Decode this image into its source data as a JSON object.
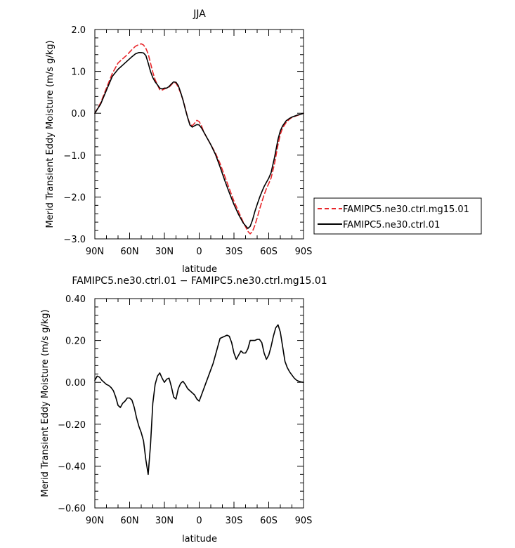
{
  "chart_data": [
    {
      "type": "line",
      "title": "JJA",
      "xlabel": "latitude",
      "ylabel": "Merid Transient Eddy Moisture (m/s g/kg)",
      "xlim": [
        90,
        -90
      ],
      "ylim": [
        -3.0,
        2.0
      ],
      "xticks": [
        90,
        60,
        30,
        0,
        -30,
        -60,
        -90
      ],
      "xtick_labels": [
        "90N",
        "60N",
        "30N",
        "0",
        "30S",
        "60S",
        "90S"
      ],
      "yticks": [
        2.0,
        1.0,
        0.0,
        -1.0,
        -2.0,
        -3.0
      ],
      "ytick_labels": [
        "2.0",
        "1.0",
        "0.0",
        "−1.0",
        "−2.0",
        "−3.0"
      ],
      "legend": "outside-right",
      "series": [
        {
          "name": "FAMIPC5.ne30.ctrl.mg15.01",
          "color": "#e8262a",
          "dash": "dashed",
          "x": [
            90,
            85,
            80,
            75,
            70,
            66,
            62,
            58,
            55,
            52,
            50,
            48,
            46,
            44,
            42,
            40,
            38,
            36,
            34,
            32,
            30,
            28,
            26,
            24,
            22,
            20,
            18,
            16,
            14,
            12,
            10,
            8,
            6,
            4,
            2,
            0,
            -2,
            -4,
            -6,
            -8,
            -10,
            -14,
            -18,
            -22,
            -26,
            -30,
            -34,
            -38,
            -42,
            -44,
            -46,
            -48,
            -50,
            -52,
            -54,
            -56,
            -58,
            -60,
            -62,
            -65,
            -68,
            -70,
            -72,
            -75,
            -78,
            -80,
            -84,
            -88,
            -90
          ],
          "y": [
            0.0,
            0.25,
            0.6,
            0.95,
            1.2,
            1.3,
            1.4,
            1.52,
            1.6,
            1.64,
            1.66,
            1.63,
            1.55,
            1.42,
            1.2,
            0.98,
            0.8,
            0.68,
            0.56,
            0.55,
            0.58,
            0.6,
            0.62,
            0.68,
            0.74,
            0.72,
            0.62,
            0.48,
            0.32,
            0.12,
            -0.1,
            -0.25,
            -0.3,
            -0.24,
            -0.17,
            -0.2,
            -0.3,
            -0.45,
            -0.55,
            -0.65,
            -0.75,
            -0.95,
            -1.2,
            -1.5,
            -1.8,
            -2.1,
            -2.35,
            -2.6,
            -2.82,
            -2.88,
            -2.82,
            -2.68,
            -2.5,
            -2.3,
            -2.12,
            -1.95,
            -1.8,
            -1.68,
            -1.55,
            -1.2,
            -0.75,
            -0.5,
            -0.35,
            -0.22,
            -0.14,
            -0.1,
            -0.06,
            -0.02,
            0.0
          ]
        },
        {
          "name": "FAMIPC5.ne30.ctrl.01",
          "color": "#000000",
          "dash": "solid",
          "x": [
            90,
            85,
            80,
            75,
            70,
            66,
            62,
            58,
            55,
            52,
            50,
            48,
            46,
            44,
            42,
            40,
            38,
            36,
            34,
            32,
            30,
            28,
            26,
            24,
            22,
            20,
            18,
            16,
            14,
            12,
            10,
            8,
            6,
            4,
            2,
            0,
            -2,
            -4,
            -6,
            -8,
            -10,
            -14,
            -18,
            -22,
            -26,
            -30,
            -34,
            -38,
            -42,
            -44,
            -46,
            -48,
            -50,
            -52,
            -54,
            -56,
            -58,
            -60,
            -62,
            -65,
            -68,
            -70,
            -72,
            -75,
            -78,
            -80,
            -84,
            -88,
            -90
          ],
          "y": [
            0.0,
            0.22,
            0.55,
            0.88,
            1.05,
            1.15,
            1.25,
            1.35,
            1.42,
            1.45,
            1.45,
            1.44,
            1.38,
            1.2,
            1.0,
            0.85,
            0.75,
            0.68,
            0.6,
            0.58,
            0.6,
            0.6,
            0.64,
            0.7,
            0.75,
            0.74,
            0.66,
            0.5,
            0.32,
            0.1,
            -0.1,
            -0.28,
            -0.33,
            -0.3,
            -0.27,
            -0.28,
            -0.35,
            -0.45,
            -0.55,
            -0.65,
            -0.75,
            -0.98,
            -1.28,
            -1.6,
            -1.9,
            -2.18,
            -2.42,
            -2.62,
            -2.75,
            -2.7,
            -2.55,
            -2.35,
            -2.18,
            -2.02,
            -1.88,
            -1.75,
            -1.65,
            -1.55,
            -1.42,
            -1.05,
            -0.62,
            -0.42,
            -0.3,
            -0.18,
            -0.12,
            -0.09,
            -0.05,
            -0.02,
            0.0
          ]
        }
      ]
    },
    {
      "type": "line",
      "title": "FAMIPC5.ne30.ctrl.01 − FAMIPC5.ne30.ctrl.mg15.01",
      "xlabel": "latitude",
      "ylabel": "Merid Transient Eddy Moisture (m/s g/kg)",
      "xlim": [
        90,
        -90
      ],
      "ylim": [
        -0.6,
        0.4
      ],
      "xticks": [
        90,
        60,
        30,
        0,
        -30,
        -60,
        -90
      ],
      "xtick_labels": [
        "90N",
        "60N",
        "30N",
        "0",
        "30S",
        "60S",
        "90S"
      ],
      "yticks": [
        0.4,
        0.2,
        0.0,
        -0.2,
        -0.4,
        -0.6
      ],
      "ytick_labels": [
        "0.40",
        "0.20",
        "0.00",
        "−0.20",
        "−0.40",
        "−0.60"
      ],
      "series": [
        {
          "color": "#000000",
          "dash": "solid",
          "x": [
            90,
            88,
            86,
            84,
            82,
            80,
            78,
            76,
            74,
            72,
            70,
            68,
            66,
            64,
            62,
            60,
            58,
            56,
            54,
            52,
            50,
            48,
            46,
            44,
            42,
            40,
            38,
            36,
            34,
            32,
            30,
            28,
            26,
            24,
            22,
            20,
            18,
            16,
            14,
            12,
            10,
            8,
            6,
            4,
            2,
            0,
            -2,
            -4,
            -6,
            -8,
            -10,
            -12,
            -14,
            -16,
            -18,
            -20,
            -22,
            -24,
            -26,
            -28,
            -30,
            -32,
            -34,
            -36,
            -38,
            -40,
            -42,
            -44,
            -46,
            -48,
            -50,
            -52,
            -54,
            -56,
            -58,
            -60,
            -62,
            -64,
            -66,
            -68,
            -70,
            -72,
            -74,
            -76,
            -78,
            -80,
            -82,
            -84,
            -86,
            -88,
            -90
          ],
          "y": [
            0.01,
            0.03,
            0.025,
            0.01,
            0.0,
            -0.01,
            -0.015,
            -0.025,
            -0.04,
            -0.07,
            -0.11,
            -0.12,
            -0.1,
            -0.09,
            -0.075,
            -0.075,
            -0.085,
            -0.12,
            -0.17,
            -0.21,
            -0.24,
            -0.28,
            -0.37,
            -0.44,
            -0.3,
            -0.1,
            -0.01,
            0.03,
            0.045,
            0.02,
            0.0,
            0.015,
            0.02,
            -0.02,
            -0.07,
            -0.08,
            -0.03,
            -0.005,
            0.005,
            -0.01,
            -0.03,
            -0.04,
            -0.05,
            -0.06,
            -0.08,
            -0.09,
            -0.06,
            -0.03,
            0.0,
            0.03,
            0.06,
            0.09,
            0.13,
            0.17,
            0.21,
            0.215,
            0.22,
            0.225,
            0.22,
            0.19,
            0.14,
            0.11,
            0.13,
            0.15,
            0.14,
            0.14,
            0.16,
            0.2,
            0.2,
            0.2,
            0.205,
            0.205,
            0.19,
            0.14,
            0.11,
            0.13,
            0.17,
            0.22,
            0.26,
            0.275,
            0.24,
            0.17,
            0.1,
            0.07,
            0.05,
            0.035,
            0.02,
            0.01,
            0.005,
            0.002,
            0.0
          ]
        }
      ]
    }
  ]
}
